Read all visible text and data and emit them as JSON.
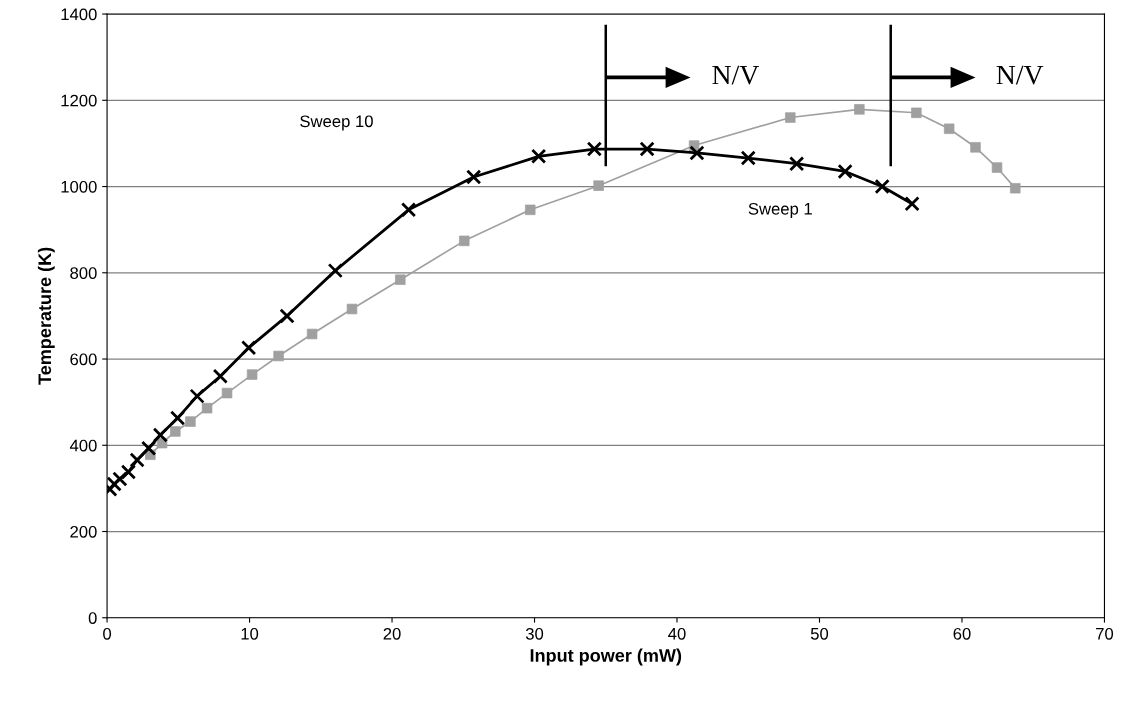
{
  "chart_data": {
    "type": "line",
    "xlabel": "Input power (mW)",
    "ylabel": "Temperature (K)",
    "xlim": [
      0,
      70
    ],
    "xticks": [
      0,
      10,
      20,
      30,
      40,
      50,
      60,
      70
    ],
    "ylim": [
      0,
      1400
    ],
    "yticks": [
      0,
      200,
      400,
      600,
      800,
      1000,
      1200,
      1400
    ],
    "grid": "y",
    "series": [
      {
        "color": "#000000",
        "marker": "cross",
        "x": [
          0.2,
          0.5,
          0.9,
          1.5,
          2.11,
          2.92,
          3.74,
          4.95,
          6.32,
          7.95,
          9.94,
          12.63,
          16.02,
          21.16,
          25.73,
          30.29,
          34.2,
          37.9,
          41.4,
          45.0,
          48.4,
          51.8,
          54.4,
          56.5
        ],
        "values": [
          298,
          310,
          322,
          338,
          366,
          393,
          424,
          463,
          514,
          560,
          626,
          700,
          805,
          946,
          1022,
          1070,
          1087,
          1087,
          1078,
          1066,
          1053,
          1035,
          1000,
          960
        ]
      },
      {
        "color": "#a0a0a0",
        "marker": "square",
        "x": [
          3.04,
          3.86,
          4.79,
          5.85,
          7.02,
          8.42,
          10.18,
          12.04,
          14.39,
          17.19,
          20.58,
          25.07,
          29.7,
          34.5,
          41.2,
          47.95,
          52.8,
          56.8,
          59.1,
          60.95,
          62.46,
          63.74
        ],
        "values": [
          378,
          405,
          432,
          455,
          486,
          521,
          564,
          607,
          658,
          716,
          784,
          874,
          946,
          1002,
          1095,
          1160,
          1179,
          1171,
          1134,
          1091,
          1044,
          996
        ]
      }
    ],
    "ref_lines": [
      {
        "axis": "x",
        "value": 35
      },
      {
        "axis": "x",
        "value": 55
      }
    ],
    "annotations": [
      "Sweep 10",
      "Sweep 1",
      "N/V",
      "N/V"
    ]
  }
}
